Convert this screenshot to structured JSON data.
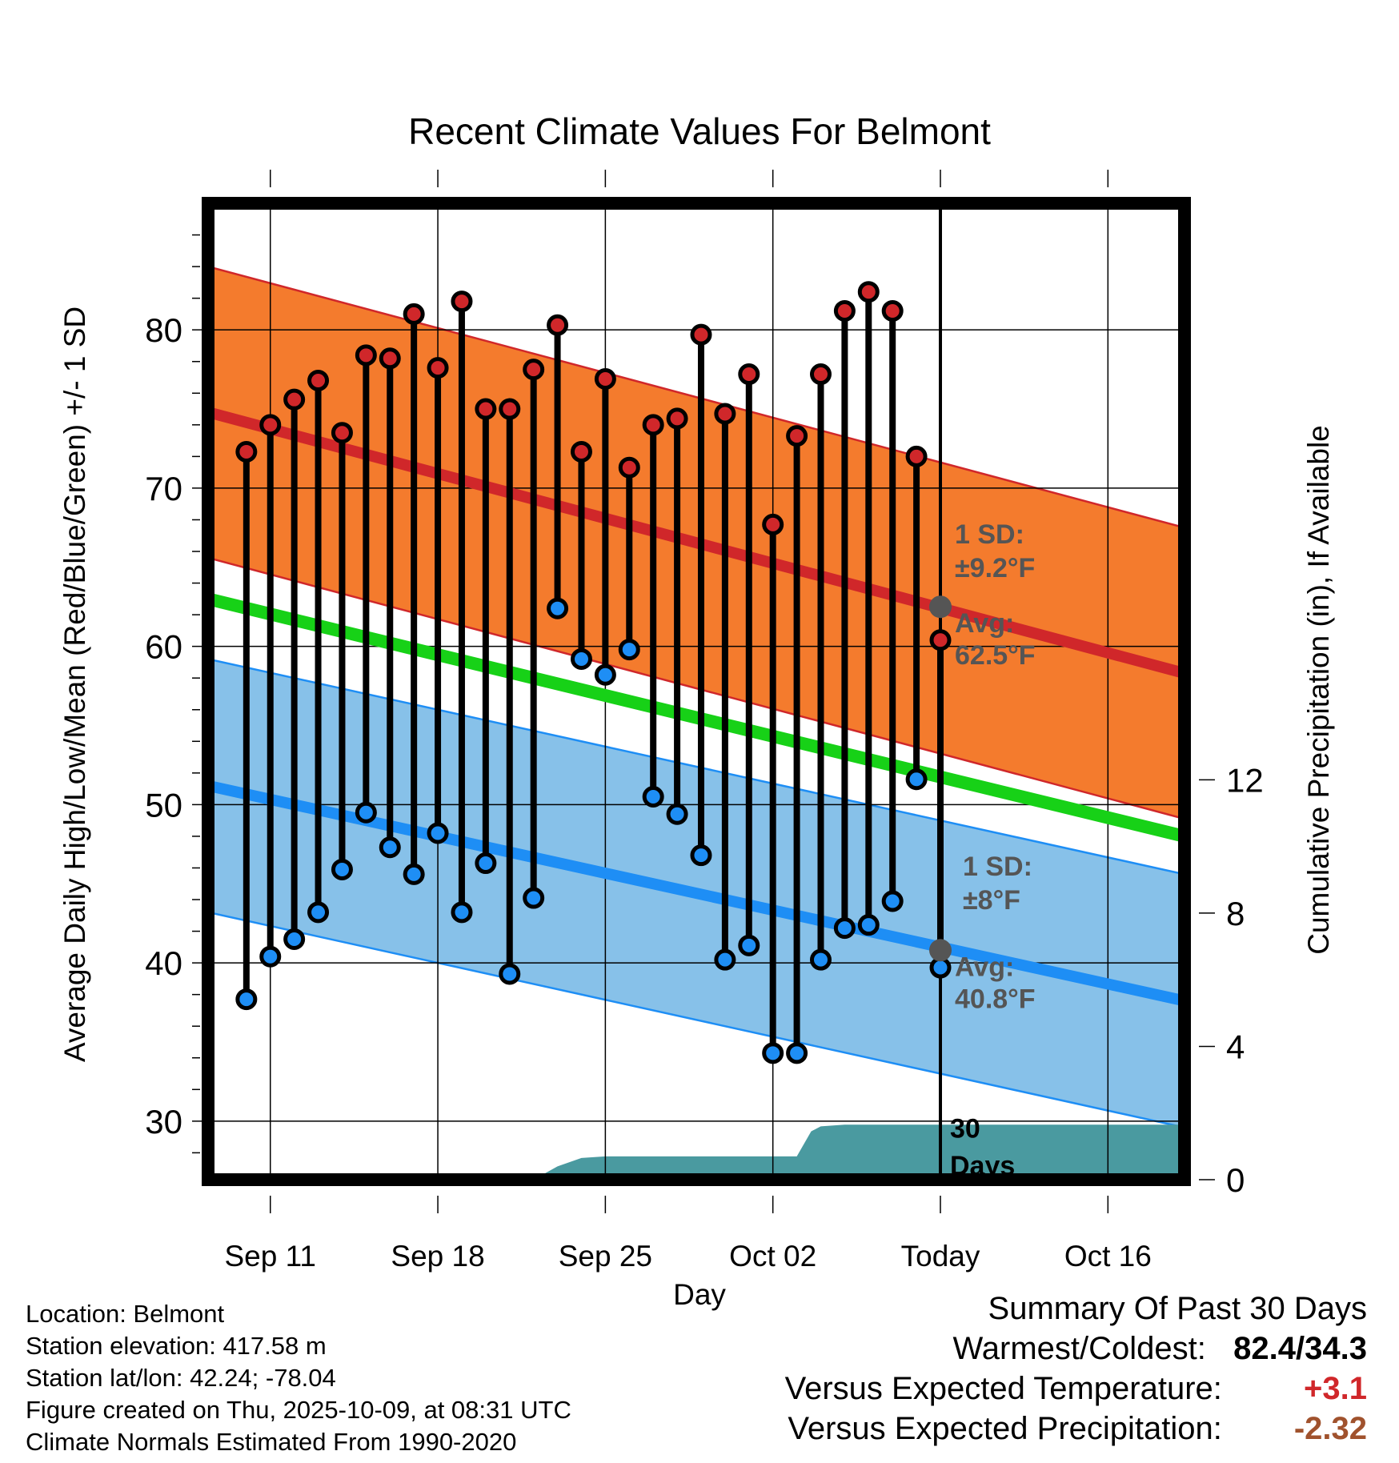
{
  "chart_data": {
    "type": "line",
    "title": "Recent Climate Values For Belmont",
    "xlabel": "Day",
    "ylabel": "Average Daily High/Low/Mean (Red/Blue/Green) +/- 1 SD",
    "y2label": "Cumulative Precipitation (in), If Available",
    "ylim": [
      26.3,
      88.0
    ],
    "y2lim": [
      0,
      29.3
    ],
    "yticks": [
      30,
      40,
      50,
      60,
      70,
      80
    ],
    "y2ticks": [
      0,
      4,
      8,
      12
    ],
    "xlim": [
      -0.6,
      40.2
    ],
    "xticks": [
      {
        "x": 2,
        "label": "Sep 11"
      },
      {
        "x": 9,
        "label": "Sep 18"
      },
      {
        "x": 16,
        "label": "Sep 25"
      },
      {
        "x": 23,
        "label": "Oct 02"
      },
      {
        "x": 30,
        "label": "Today"
      },
      {
        "x": 37,
        "label": "Oct 16"
      }
    ],
    "today_x": 30,
    "normals": {
      "high": {
        "start": 74.8,
        "end": 58.3,
        "sd": 9.2,
        "color": "#d0272a",
        "band_color": "#f47b2d"
      },
      "low": {
        "start": 51.2,
        "end": 37.6,
        "sd": 8.0,
        "color": "#1e8ef5",
        "band_color": "#87c1e9"
      },
      "mean": {
        "start": 63.0,
        "end": 48.0,
        "color": "#17d117"
      }
    },
    "series": [
      {
        "name": "Daily High",
        "color": "#d0272a",
        "x": [
          1,
          2,
          3,
          4,
          5,
          6,
          7,
          8,
          9,
          10,
          11,
          12,
          13,
          14,
          15,
          16,
          17,
          18,
          19,
          20,
          21,
          22,
          23,
          24,
          25,
          26,
          27,
          28,
          29
        ],
        "values": [
          72.3,
          74.0,
          75.6,
          76.8,
          73.5,
          78.4,
          78.2,
          81.0,
          77.6,
          81.8,
          75.0,
          75.0,
          77.5,
          80.3,
          72.3,
          76.9,
          71.3,
          74.0,
          74.4,
          79.7,
          74.7,
          77.2,
          67.7,
          73.3,
          77.2,
          81.2,
          82.4,
          81.2,
          72.0
        ]
      },
      {
        "name": "Daily Low",
        "color": "#1e8ef5",
        "x": [
          1,
          2,
          3,
          4,
          5,
          6,
          7,
          8,
          9,
          10,
          11,
          12,
          13,
          14,
          15,
          16,
          17,
          18,
          19,
          20,
          21,
          22,
          23,
          24,
          25,
          26,
          27,
          28,
          29
        ],
        "values": [
          37.7,
          40.4,
          41.5,
          43.2,
          45.9,
          49.5,
          47.3,
          45.6,
          48.2,
          43.2,
          46.3,
          39.3,
          44.1,
          62.4,
          59.2,
          58.2,
          59.8,
          50.5,
          49.4,
          46.8,
          40.2,
          41.1,
          34.3,
          34.3,
          40.2,
          42.2,
          42.4,
          43.9,
          51.6
        ]
      },
      {
        "name": "Today",
        "color": "#d0272a",
        "x": [
          30
        ],
        "values": [
          60.4
        ],
        "low": [
          39.7
        ]
      },
      {
        "name": "Cumulative Precipitation",
        "color": "#4a9aa0",
        "x": [
          13,
          14,
          15,
          16,
          24,
          24.6,
          25,
          26,
          40.2
        ],
        "values": [
          0,
          0.4,
          0.65,
          0.7,
          0.7,
          1.45,
          1.6,
          1.65,
          1.65
        ]
      }
    ],
    "annotations": {
      "high_sd_label": "1 SD:",
      "high_sd_value": "±9.2°F",
      "high_avg_label": "Avg:",
      "high_avg_value": "62.5°F",
      "low_sd_label": "1 SD:",
      "low_sd_value": "±8°F",
      "low_avg_label": "Avg:",
      "low_avg_value": "40.8°F",
      "days_count": "30",
      "days_word": "Days"
    }
  },
  "footer": {
    "location": "Location: Belmont",
    "elevation": "Station elevation: 417.58 m",
    "latlon": "Station lat/lon: 42.24; -78.04",
    "created": "Figure created on Thu, 2025-10-09, at 08:31 UTC",
    "normals": "Climate Normals Estimated From 1990-2020"
  },
  "summary": {
    "heading": "Summary Of Past 30 Days",
    "warm_cold_label": "Warmest/Coldest:",
    "warm_cold_value": "82.4/34.3",
    "temp_label": "Versus Expected Temperature:",
    "temp_value": "+3.1",
    "temp_color": "#d0272a",
    "precip_label": "Versus Expected Precipitation:",
    "precip_value": "-2.32",
    "precip_color": "#a0522d"
  }
}
